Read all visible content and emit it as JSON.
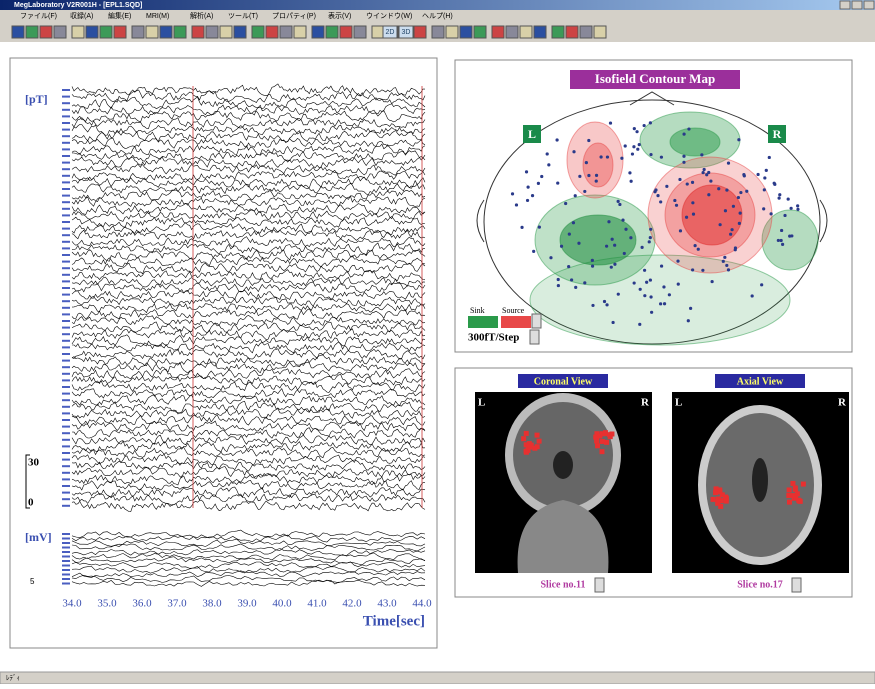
{
  "window": {
    "title": "MegLaboratory V2R001H - [EPL1.SQD]"
  },
  "menu": [
    "ファイル(F)",
    "収録(A)",
    "編集(E)",
    "MRI(M)",
    "解析(A)",
    "ツール(T)",
    "プロパティ(P)",
    "表示(V)",
    "ウインドウ(W)",
    "ヘルプ(H)"
  ],
  "toolbar": {
    "buttons": [
      "2D",
      "3D"
    ]
  },
  "waveform_panel": {
    "meg_unit": "[pT]",
    "meg_scale_top": "30",
    "meg_scale_bottom": "0",
    "eeg_unit": "[mV]",
    "eeg_scale": "5",
    "time_ticks": [
      "34.0",
      "35.0",
      "36.0",
      "37.0",
      "38.0",
      "39.0",
      "40.0",
      "41.0",
      "42.0",
      "43.0",
      "44.0"
    ],
    "time_label": "Time[sec]"
  },
  "contour_map": {
    "title": "Isofield Contour Map",
    "left": "L",
    "right": "R",
    "sink": "Sink",
    "source": "Source",
    "step": "300fT/Step"
  },
  "mri": {
    "views": [
      {
        "title": "Coronal View",
        "left": "L",
        "right": "R",
        "slice": "Slice no.11"
      },
      {
        "title": "Axial View",
        "left": "L",
        "right": "R",
        "slice": "Slice no.17"
      }
    ]
  },
  "status_bar": {
    "text": "ﾚﾃﾞｨ"
  }
}
